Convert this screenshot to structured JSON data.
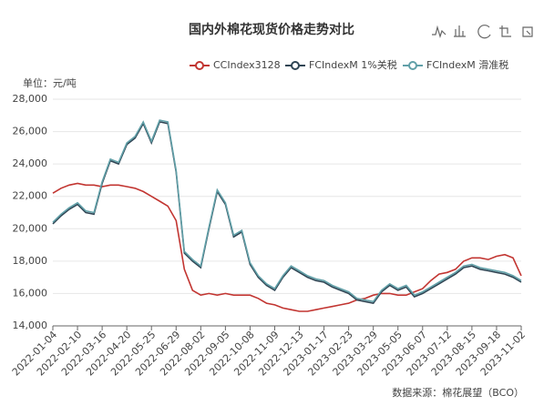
{
  "chart_data": {
    "type": "line",
    "title": "国内外棉花现货价格走势对比",
    "y_unit": "单位：元/吨",
    "source": "数据来源：棉花展望（BCO）",
    "categories": [
      "2022-01-04",
      null,
      null,
      "2022-02-10",
      null,
      null,
      "2022-03-16",
      null,
      null,
      "2022-04-20",
      null,
      null,
      "2022-05-25",
      null,
      null,
      "2022-06-29",
      null,
      null,
      "2022-08-02",
      null,
      null,
      "2022-09-05",
      null,
      null,
      "2022-10-08",
      null,
      null,
      "2022-11-09",
      null,
      null,
      "2022-12-13",
      null,
      null,
      "2023-01-17",
      null,
      null,
      "2023-02-23",
      null,
      null,
      "2023-03-29",
      null,
      null,
      "2023-05-05",
      null,
      null,
      "2023-06-07",
      null,
      null,
      "2023-07-12",
      null,
      null,
      "2023-08-15",
      null,
      null,
      "2023-09-18",
      null,
      null,
      "2023-11-02"
    ],
    "series": [
      {
        "name": "CCIndex3128",
        "color": "#c23531",
        "values": [
          22200,
          22500,
          22700,
          22800,
          22700,
          22700,
          22600,
          22700,
          22700,
          22600,
          22500,
          22300,
          22000,
          21700,
          21400,
          20500,
          17500,
          16200,
          15900,
          16000,
          15900,
          16000,
          15900,
          15900,
          15900,
          15700,
          15400,
          15300,
          15100,
          15000,
          14900,
          14900,
          15000,
          15100,
          15200,
          15300,
          15400,
          15600,
          15700,
          15900,
          16000,
          16000,
          15900,
          15900,
          16100,
          16300,
          16800,
          17200,
          17300,
          17500,
          18000,
          18200,
          18200,
          18100,
          18300,
          18400,
          18200,
          17100
        ]
      },
      {
        "name": "FCIndexM 1%关税",
        "color": "#2f4554",
        "values": [
          20300,
          20800,
          21200,
          21500,
          21000,
          20900,
          22800,
          24200,
          24000,
          25200,
          25600,
          26500,
          25300,
          26600,
          26500,
          23500,
          18500,
          18000,
          17600,
          20000,
          22300,
          21500,
          19500,
          19800,
          17800,
          17000,
          16500,
          16200,
          17000,
          17600,
          17300,
          17000,
          16800,
          16700,
          16400,
          16200,
          16000,
          15600,
          15500,
          15400,
          16100,
          16500,
          16200,
          16400,
          15800,
          16000,
          16300,
          16600,
          16900,
          17200,
          17600,
          17700,
          17500,
          17400,
          17300,
          17200,
          17000,
          16700
        ]
      },
      {
        "name": "FCIndexM 滑准税",
        "color": "#61a0a8",
        "values": [
          20400,
          20900,
          21300,
          21600,
          21100,
          21000,
          22900,
          24300,
          24100,
          25300,
          25700,
          26600,
          25400,
          26700,
          26600,
          23600,
          18600,
          18100,
          17700,
          20100,
          22400,
          21600,
          19600,
          19900,
          17900,
          17100,
          16600,
          16300,
          17100,
          17700,
          17400,
          17100,
          16900,
          16800,
          16500,
          16300,
          16100,
          15700,
          15600,
          15500,
          16200,
          16600,
          16300,
          16500,
          15900,
          16100,
          16400,
          16700,
          17000,
          17300,
          17700,
          17800,
          17600,
          17500,
          17400,
          17300,
          17100,
          16800
        ]
      }
    ],
    "ylim": [
      14000,
      28000
    ],
    "yticks": [
      {
        "value": 14000,
        "label": "14,000"
      },
      {
        "value": 16000,
        "label": "16,000"
      },
      {
        "value": 18000,
        "label": "18,000"
      },
      {
        "value": 20000,
        "label": "20,000"
      },
      {
        "value": 22000,
        "label": "22,000"
      },
      {
        "value": 24000,
        "label": "24,000"
      },
      {
        "value": 26000,
        "label": "26,000"
      },
      {
        "value": 28000,
        "label": "28,000"
      }
    ],
    "grid": true
  }
}
